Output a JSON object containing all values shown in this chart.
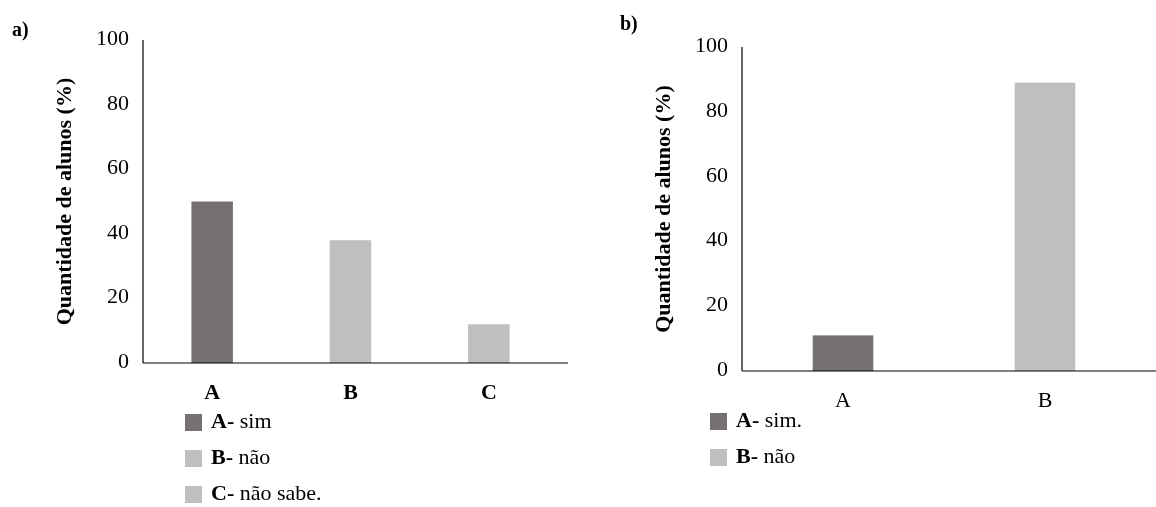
{
  "chart_data": [
    {
      "type": "bar",
      "title": "a)",
      "ylabel": "Quantidade de alunos (%)",
      "categories": [
        "A",
        "B",
        "C"
      ],
      "legend": "bottom",
      "ylim": [
        0,
        100
      ],
      "yticks": [
        0,
        20,
        40,
        60,
        80,
        100
      ],
      "series": [
        {
          "name": "A- sim",
          "color": "#767171",
          "values": [
            50,
            null,
            null
          ]
        },
        {
          "name": "B- não",
          "color": "#bfbfbf",
          "values": [
            null,
            38,
            null
          ]
        },
        {
          "name": "C- não sabe.",
          "color": "#bfbfbf",
          "values": [
            null,
            null,
            12
          ]
        }
      ]
    },
    {
      "type": "bar",
      "title": "b)",
      "ylabel": "Quantidade de alunos (%)",
      "categories": [
        "A",
        "B"
      ],
      "legend": "bottom",
      "ylim": [
        0,
        100
      ],
      "yticks": [
        0,
        20,
        40,
        60,
        80,
        100
      ],
      "series": [
        {
          "name": "A- sim.",
          "color": "#767171",
          "values": [
            11,
            null
          ]
        },
        {
          "name": "B- não",
          "color": "#bfbfbf",
          "values": [
            null,
            89
          ]
        }
      ]
    }
  ]
}
